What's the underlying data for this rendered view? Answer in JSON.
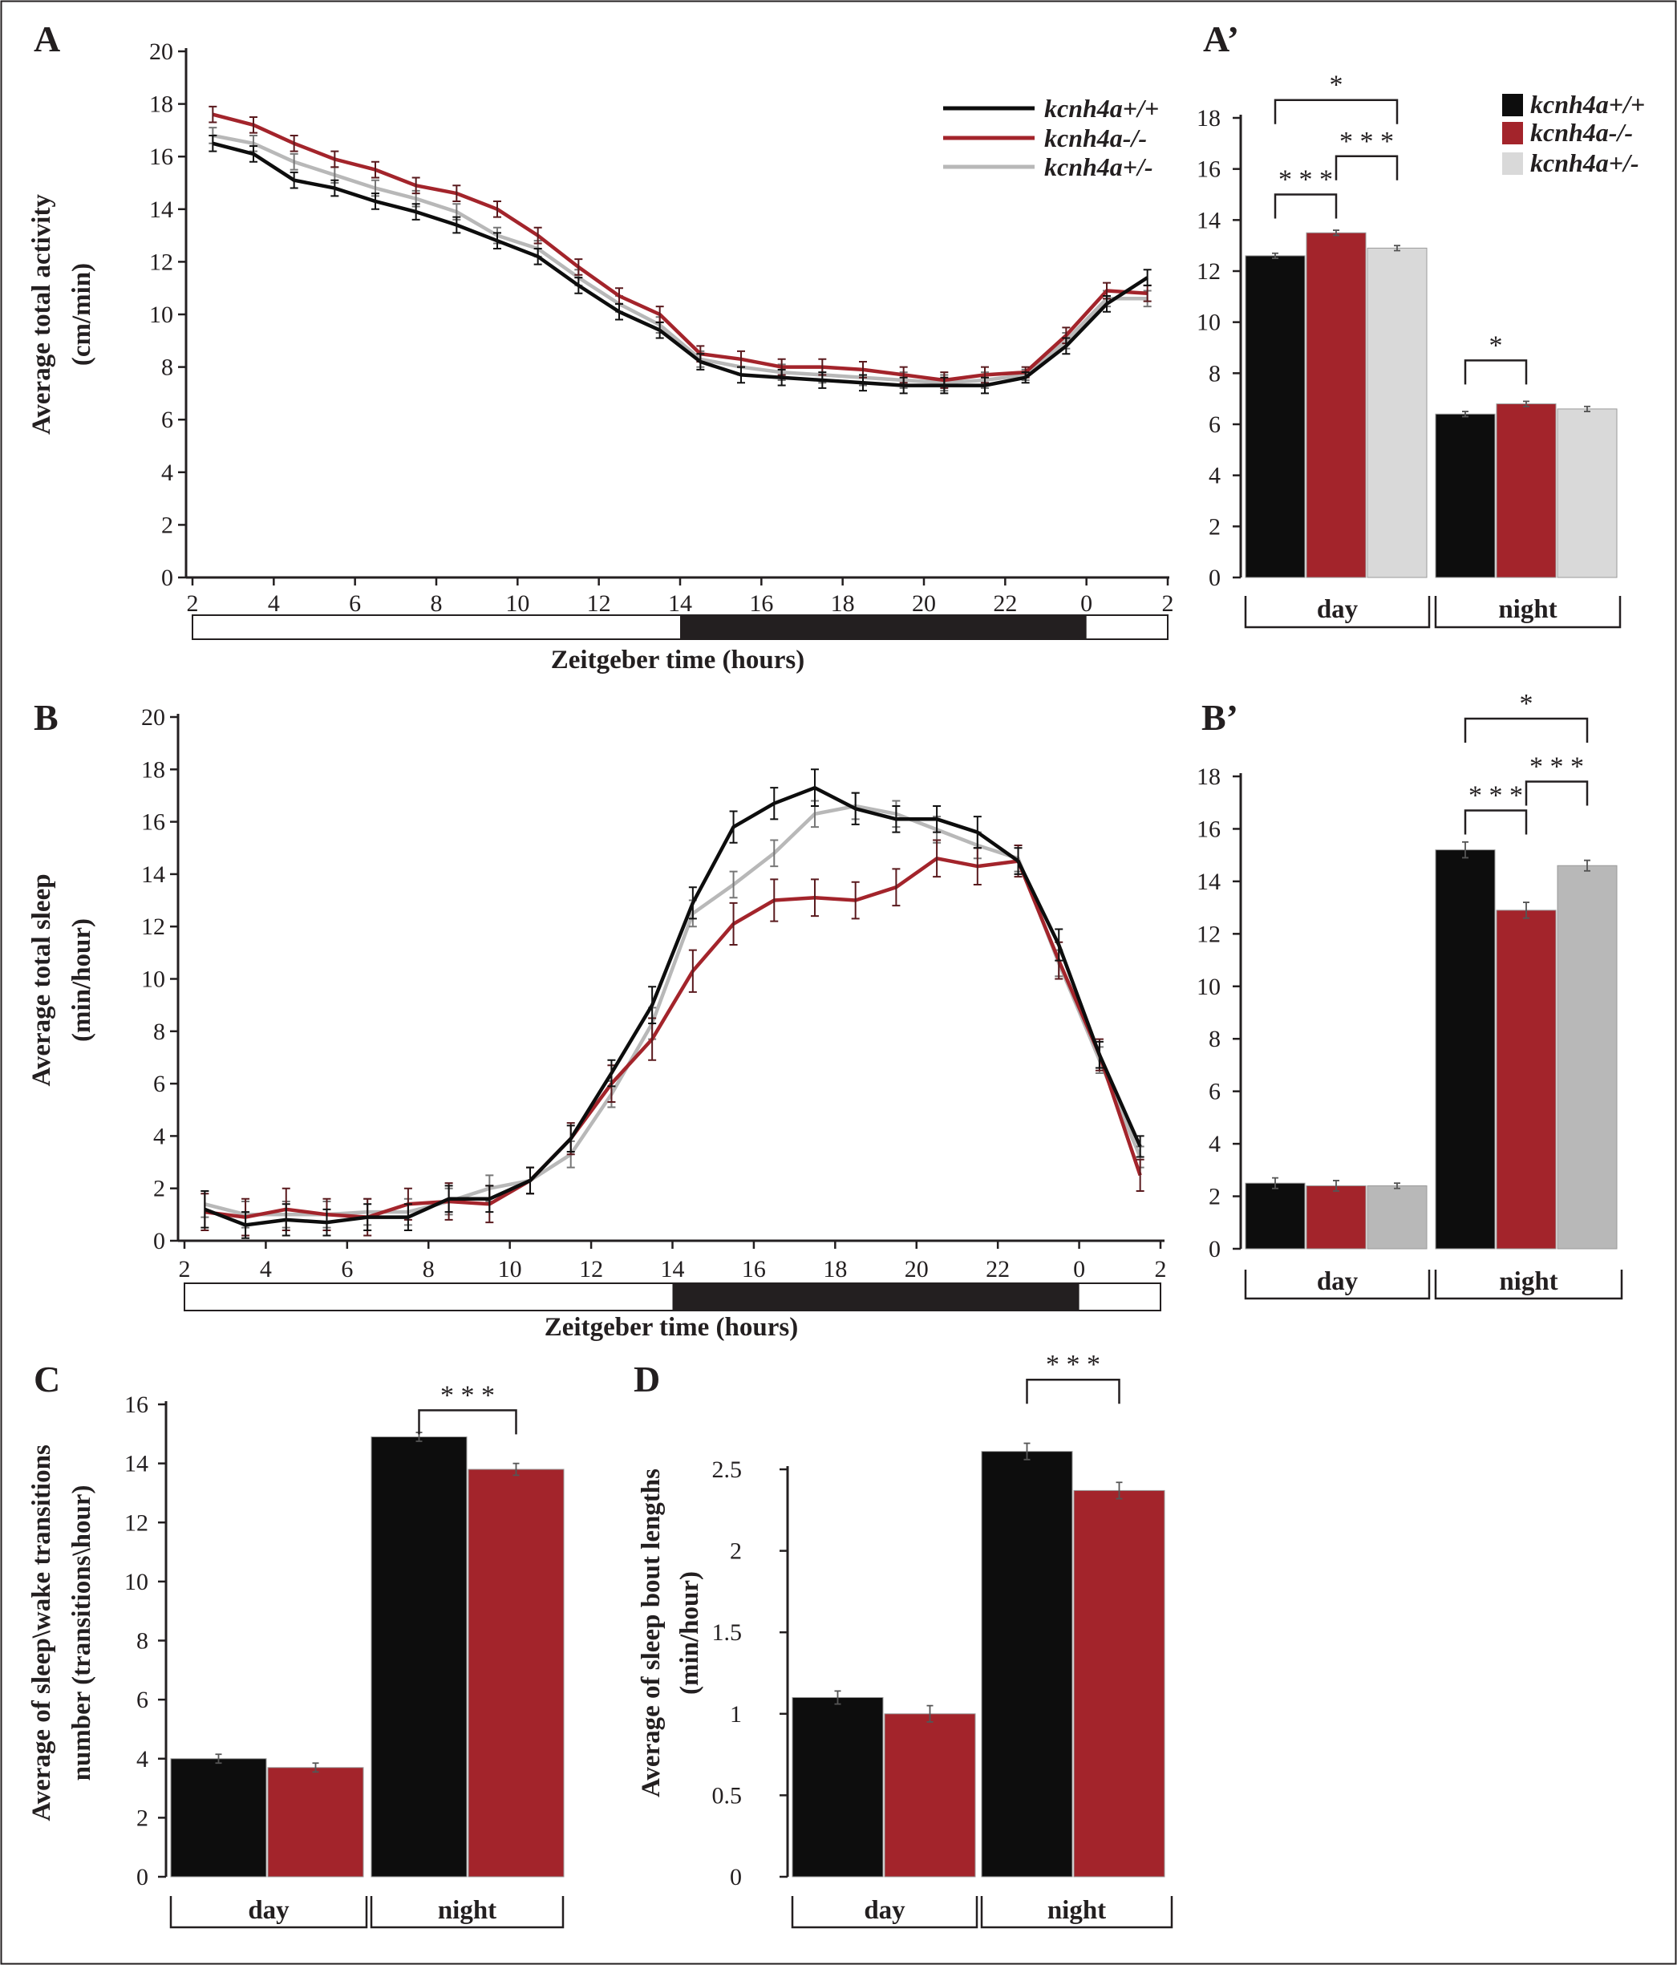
{
  "colors": {
    "wt": "#0d0d0d",
    "ko": "#a3242b",
    "het": "#b8b8b8",
    "het_bar_A": "#d9d9d9",
    "axis": "#231f20",
    "dark_phase": "#231f20"
  },
  "legend": [
    {
      "label": "kcnh4a+/+",
      "color": "#0d0d0d"
    },
    {
      "label": "kcnh4a-/-",
      "color": "#a3242b"
    },
    {
      "label": "kcnh4a+/-",
      "color": "#b8b8b8"
    }
  ],
  "chart_data": [
    {
      "id": "A",
      "panel_label": "A",
      "type": "line",
      "ylabel_lines": [
        "Average total activity",
        "(cm/min)"
      ],
      "xlabel": "Zeitgeber time (hours)",
      "x_ticks": [
        "2",
        "4",
        "6",
        "8",
        "10",
        "12",
        "14",
        "16",
        "18",
        "20",
        "22",
        "0",
        "2"
      ],
      "x_range": [
        2,
        26
      ],
      "y_ticks": [
        "0",
        "2",
        "4",
        "6",
        "8",
        "10",
        "12",
        "14",
        "16",
        "18",
        "20"
      ],
      "ylim": [
        0,
        20
      ],
      "light_dark": {
        "dark_start": 14,
        "dark_end": 24
      },
      "legend": "top-right",
      "x": [
        2.5,
        3.5,
        4.5,
        5.5,
        6.5,
        7.5,
        8.5,
        9.5,
        10.5,
        11.5,
        12.5,
        13.5,
        14.5,
        15.5,
        16.5,
        17.5,
        18.5,
        19.5,
        20.5,
        21.5,
        22.5,
        23.5,
        24.5,
        25.5
      ],
      "series": [
        {
          "name": "kcnh4a+/+",
          "color": "#0d0d0d",
          "values": [
            16.5,
            16.1,
            15.1,
            14.8,
            14.3,
            13.9,
            13.4,
            12.8,
            12.2,
            11.1,
            10.1,
            9.4,
            8.2,
            7.7,
            7.6,
            7.5,
            7.4,
            7.3,
            7.3,
            7.3,
            7.6,
            8.8,
            10.4,
            11.4
          ],
          "errors": [
            0.3,
            0.3,
            0.3,
            0.3,
            0.3,
            0.3,
            0.3,
            0.3,
            0.3,
            0.3,
            0.3,
            0.3,
            0.3,
            0.3,
            0.3,
            0.3,
            0.3,
            0.3,
            0.3,
            0.3,
            0.2,
            0.3,
            0.3,
            0.3
          ]
        },
        {
          "name": "kcnh4a-/-",
          "color": "#a3242b",
          "values": [
            17.6,
            17.2,
            16.5,
            15.9,
            15.5,
            14.9,
            14.6,
            14.0,
            13.0,
            11.8,
            10.7,
            10.0,
            8.5,
            8.3,
            8.0,
            8.0,
            7.9,
            7.7,
            7.5,
            7.7,
            7.8,
            9.2,
            10.9,
            10.8
          ],
          "errors": [
            0.3,
            0.3,
            0.3,
            0.3,
            0.3,
            0.3,
            0.3,
            0.3,
            0.3,
            0.3,
            0.3,
            0.3,
            0.3,
            0.3,
            0.3,
            0.3,
            0.3,
            0.3,
            0.3,
            0.3,
            0.2,
            0.3,
            0.3,
            0.3
          ]
        },
        {
          "name": "kcnh4a+/-",
          "color": "#b8b8b8",
          "values": [
            16.8,
            16.5,
            15.8,
            15.3,
            14.8,
            14.4,
            13.9,
            13.0,
            12.5,
            11.4,
            10.4,
            9.6,
            8.3,
            8.0,
            7.8,
            7.7,
            7.6,
            7.5,
            7.4,
            7.5,
            7.7,
            9.0,
            10.6,
            10.6
          ],
          "errors": [
            0.3,
            0.3,
            0.3,
            0.3,
            0.3,
            0.3,
            0.3,
            0.3,
            0.3,
            0.3,
            0.3,
            0.3,
            0.3,
            0.3,
            0.3,
            0.3,
            0.3,
            0.3,
            0.3,
            0.3,
            0.2,
            0.3,
            0.3,
            0.3
          ]
        }
      ]
    },
    {
      "id": "A2",
      "panel_label": "A’",
      "type": "bar",
      "categories": [
        "day",
        "night"
      ],
      "y_ticks": [
        "0",
        "2",
        "4",
        "6",
        "8",
        "10",
        "12",
        "14",
        "16",
        "18"
      ],
      "ylim": [
        0,
        18
      ],
      "legend": "top-right",
      "series": [
        {
          "name": "kcnh4a+/+",
          "color": "#0d0d0d",
          "values": [
            12.6,
            6.4
          ],
          "errors": [
            0.1,
            0.1
          ]
        },
        {
          "name": "kcnh4a-/-",
          "color": "#a3242b",
          "values": [
            13.5,
            6.8
          ],
          "errors": [
            0.1,
            0.1
          ]
        },
        {
          "name": "kcnh4a+/-",
          "color": "#d9d9d9",
          "values": [
            12.9,
            6.6
          ],
          "errors": [
            0.1,
            0.1
          ]
        }
      ],
      "significance": [
        {
          "group": 0,
          "from": 0,
          "to": 1,
          "label": "* * *",
          "y": 15.0
        },
        {
          "group": 0,
          "from": 1,
          "to": 2,
          "label": "* * *",
          "y": 16.5
        },
        {
          "group": 0,
          "from": 0,
          "to": 2,
          "label": "*",
          "y": 18.7
        },
        {
          "group": 1,
          "from": 0,
          "to": 1,
          "label": "*",
          "y": 8.5
        }
      ]
    },
    {
      "id": "B",
      "panel_label": "B",
      "type": "line",
      "ylabel_lines": [
        "Average total sleep",
        "(min/hour)"
      ],
      "xlabel": "Zeitgeber time (hours)",
      "x_ticks": [
        "2",
        "4",
        "6",
        "8",
        "10",
        "12",
        "14",
        "16",
        "18",
        "20",
        "22",
        "0",
        "2"
      ],
      "x_range": [
        2,
        26
      ],
      "y_ticks": [
        "0",
        "2",
        "4",
        "6",
        "8",
        "10",
        "12",
        "14",
        "16",
        "18",
        "20"
      ],
      "ylim": [
        0,
        20
      ],
      "light_dark": {
        "dark_start": 14,
        "dark_end": 24
      },
      "x": [
        2.5,
        3.5,
        4.5,
        5.5,
        6.5,
        7.5,
        8.5,
        9.5,
        10.5,
        11.5,
        12.5,
        13.5,
        14.5,
        15.5,
        16.5,
        17.5,
        18.5,
        19.5,
        20.5,
        21.5,
        22.5,
        23.5,
        24.5,
        25.5
      ],
      "series": [
        {
          "name": "kcnh4a+/+",
          "color": "#0d0d0d",
          "values": [
            1.2,
            0.6,
            0.8,
            0.7,
            0.9,
            0.9,
            1.6,
            1.6,
            2.3,
            3.9,
            6.4,
            9.0,
            12.9,
            15.8,
            16.7,
            17.3,
            16.5,
            16.1,
            16.1,
            15.6,
            14.5,
            11.3,
            7.1,
            3.6
          ],
          "errors": [
            0.7,
            0.5,
            0.6,
            0.5,
            0.5,
            0.5,
            0.5,
            0.5,
            0.5,
            0.5,
            0.5,
            0.7,
            0.6,
            0.6,
            0.6,
            0.7,
            0.6,
            0.5,
            0.5,
            0.6,
            0.5,
            0.6,
            0.5,
            0.4
          ]
        },
        {
          "name": "kcnh4a-/-",
          "color": "#a3242b",
          "values": [
            1.1,
            0.9,
            1.2,
            1.0,
            0.9,
            1.4,
            1.5,
            1.4,
            2.3,
            3.9,
            6.0,
            7.7,
            10.3,
            12.1,
            13.0,
            13.1,
            13.0,
            13.5,
            14.6,
            14.3,
            14.5,
            10.7,
            7.1,
            2.5
          ],
          "errors": [
            0.7,
            0.7,
            0.8,
            0.6,
            0.7,
            0.6,
            0.7,
            0.7,
            0.5,
            0.6,
            0.7,
            0.8,
            0.8,
            0.8,
            0.8,
            0.7,
            0.7,
            0.7,
            0.7,
            0.7,
            0.6,
            0.7,
            0.6,
            0.6
          ]
        },
        {
          "name": "kcnh4a+/-",
          "color": "#b8b8b8",
          "values": [
            1.4,
            1.0,
            1.0,
            1.0,
            1.1,
            1.1,
            1.5,
            2.0,
            2.3,
            3.3,
            5.6,
            8.3,
            12.5,
            13.6,
            14.8,
            16.3,
            16.6,
            16.3,
            15.7,
            15.1,
            14.6,
            10.6,
            6.9,
            3.2
          ],
          "errors": [
            0.5,
            0.5,
            0.5,
            0.5,
            0.5,
            0.5,
            0.5,
            0.5,
            0.5,
            0.5,
            0.5,
            0.6,
            0.5,
            0.5,
            0.5,
            0.5,
            0.5,
            0.5,
            0.5,
            0.5,
            0.5,
            0.5,
            0.5,
            0.4
          ]
        }
      ]
    },
    {
      "id": "B2",
      "panel_label": "B’",
      "type": "bar",
      "categories": [
        "day",
        "night"
      ],
      "y_ticks": [
        "0",
        "2",
        "4",
        "6",
        "8",
        "10",
        "12",
        "14",
        "16",
        "18"
      ],
      "ylim": [
        0,
        18
      ],
      "series": [
        {
          "name": "kcnh4a+/+",
          "color": "#0d0d0d",
          "values": [
            2.5,
            15.2
          ],
          "errors": [
            0.2,
            0.3
          ]
        },
        {
          "name": "kcnh4a-/-",
          "color": "#a3242b",
          "values": [
            2.4,
            12.9
          ],
          "errors": [
            0.2,
            0.3
          ]
        },
        {
          "name": "kcnh4a+/-",
          "color": "#b8b8b8",
          "values": [
            2.4,
            14.6
          ],
          "errors": [
            0.1,
            0.2
          ]
        }
      ],
      "significance": [
        {
          "group": 1,
          "from": 0,
          "to": 1,
          "label": "* * *",
          "y": 16.7
        },
        {
          "group": 1,
          "from": 1,
          "to": 2,
          "label": "* * *",
          "y": 17.8
        },
        {
          "group": 1,
          "from": 0,
          "to": 2,
          "label": "*",
          "y": 20.2
        }
      ]
    },
    {
      "id": "C",
      "panel_label": "C",
      "type": "bar",
      "ylabel_lines": [
        "Average  of  sleep\\wake  transitions",
        "number (transitions\\hour)"
      ],
      "categories": [
        "day",
        "night"
      ],
      "y_ticks": [
        "0",
        "2",
        "4",
        "6",
        "8",
        "10",
        "12",
        "14",
        "16"
      ],
      "ylim": [
        0,
        16
      ],
      "series": [
        {
          "name": "kcnh4a+/+",
          "color": "#0d0d0d",
          "values": [
            4.0,
            14.9
          ],
          "errors": [
            0.15,
            0.15
          ]
        },
        {
          "name": "kcnh4a-/-",
          "color": "#a3242b",
          "values": [
            3.7,
            13.8
          ],
          "errors": [
            0.15,
            0.2
          ]
        }
      ],
      "significance": [
        {
          "group": 1,
          "from": 0,
          "to": 1,
          "label": "* * *",
          "y": 15.8
        }
      ]
    },
    {
      "id": "D",
      "panel_label": "D",
      "type": "bar",
      "ylabel_lines": [
        "Average of sleep bout lengths",
        "(min/hour)"
      ],
      "categories": [
        "day",
        "night"
      ],
      "y_ticks": [
        "0",
        "0.5",
        "1",
        "1.5",
        "2",
        "2.5"
      ],
      "ylim": [
        0,
        2.5
      ],
      "series": [
        {
          "name": "kcnh4a+/+",
          "color": "#0d0d0d",
          "values": [
            1.1,
            2.61
          ],
          "errors": [
            0.04,
            0.05
          ]
        },
        {
          "name": "kcnh4a-/-",
          "color": "#a3242b",
          "values": [
            1.0,
            2.37
          ],
          "errors": [
            0.05,
            0.05
          ]
        }
      ],
      "significance": [
        {
          "group": 1,
          "from": 0,
          "to": 1,
          "label": "* * *",
          "y": 3.05
        }
      ]
    }
  ]
}
